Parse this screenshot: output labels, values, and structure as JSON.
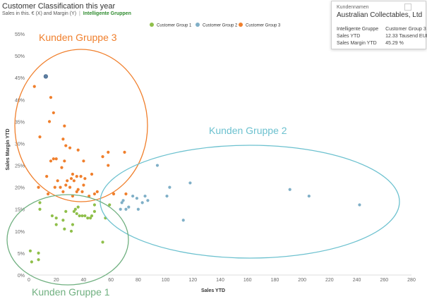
{
  "header": {
    "title": "Customer Classification this year",
    "subtitle_metrics": "Sales in this. € (X) and Margin (Y)",
    "subtitle_separator": "|",
    "subtitle_link": "Intelligente Gruppen"
  },
  "tooltip": {
    "header": "Kundennamen",
    "name": "Australian Collectables, Ltd",
    "rows": [
      {
        "label": "Intelligente Gruppe",
        "value": "Customer Group 3"
      },
      {
        "label": "Sales YTD",
        "value": "12.33 Tausend EUR"
      },
      {
        "label": "Sales Margin YTD",
        "value": "45.29 %"
      }
    ]
  },
  "annotations": [
    {
      "text": "Kunden Gruppe 3",
      "color": "#f07f2c"
    },
    {
      "text": "Kunden Gruppe 2",
      "color": "#6cc1cf"
    },
    {
      "text": "Kunden Gruppe 1",
      "color": "#70b080"
    }
  ],
  "chart_data": {
    "type": "scatter",
    "xlabel": "Sales YTD",
    "ylabel": "Sales Margin YTD",
    "xlim": [
      0,
      280
    ],
    "ylim": [
      0,
      55
    ],
    "x_ticks": [
      "0",
      "20",
      "40",
      "60",
      "80",
      "100",
      "120",
      "140",
      "160",
      "180",
      "200",
      "220",
      "240",
      "260",
      "280"
    ],
    "y_ticks": [
      "0%",
      "5%",
      "10%",
      "15%",
      "20%",
      "25%",
      "30%",
      "35%",
      "40%",
      "45%",
      "50%",
      "55%"
    ],
    "legend_position": "top",
    "highlighted_point": {
      "x": 12.33,
      "y": 45.29
    },
    "series": [
      {
        "name": "Customer Group 1",
        "color": "#8fbf4a",
        "points": [
          [
            1,
            5.5
          ],
          [
            7,
            5
          ],
          [
            2,
            3
          ],
          [
            7,
            3.5
          ],
          [
            8,
            16.5
          ],
          [
            8,
            15
          ],
          [
            17,
            13.5
          ],
          [
            20,
            13
          ],
          [
            20,
            11.5
          ],
          [
            25,
            12.5
          ],
          [
            26,
            10.5
          ],
          [
            27,
            14.5
          ],
          [
            31,
            10
          ],
          [
            32,
            11.5
          ],
          [
            33,
            14.5
          ],
          [
            34,
            15
          ],
          [
            35,
            14
          ],
          [
            36,
            15.5
          ],
          [
            37,
            13.5
          ],
          [
            39,
            13.5
          ],
          [
            41,
            13.5
          ],
          [
            43,
            13
          ],
          [
            45,
            13
          ],
          [
            46,
            13.5
          ],
          [
            48,
            14.5
          ],
          [
            54,
            7.5
          ],
          [
            56,
            13
          ],
          [
            59,
            16
          ],
          [
            48,
            16
          ]
        ]
      },
      {
        "name": "Customer Group 2",
        "color": "#7fafc7",
        "points": [
          [
            67,
            15
          ],
          [
            68,
            16.5
          ],
          [
            69,
            17
          ],
          [
            71,
            15
          ],
          [
            73,
            15.5
          ],
          [
            76,
            18
          ],
          [
            79,
            17.5
          ],
          [
            80,
            15
          ],
          [
            83,
            16.5
          ],
          [
            85,
            18
          ],
          [
            87,
            17
          ],
          [
            94,
            25
          ],
          [
            101,
            18
          ],
          [
            103,
            20
          ],
          [
            113,
            12.5
          ],
          [
            118,
            21
          ],
          [
            191,
            19.5
          ],
          [
            205,
            18
          ],
          [
            242,
            16
          ]
        ]
      },
      {
        "name": "Customer Group 3",
        "color": "#f07f2c",
        "points": [
          [
            12.33,
            45.29
          ],
          [
            4,
            43
          ],
          [
            16,
            40.5
          ],
          [
            18,
            37
          ],
          [
            15,
            35
          ],
          [
            26,
            34
          ],
          [
            8,
            31.5
          ],
          [
            25,
            31
          ],
          [
            27,
            29.5
          ],
          [
            30,
            29
          ],
          [
            36,
            28.5
          ],
          [
            58,
            28
          ],
          [
            70,
            28
          ],
          [
            18,
            26.5
          ],
          [
            20,
            26.5
          ],
          [
            16,
            26
          ],
          [
            26,
            26
          ],
          [
            40,
            26
          ],
          [
            54,
            27
          ],
          [
            24,
            24.5
          ],
          [
            58,
            25
          ],
          [
            32,
            23
          ],
          [
            46,
            23
          ],
          [
            13,
            22.5
          ],
          [
            31,
            22
          ],
          [
            35,
            22.5
          ],
          [
            38,
            22.5
          ],
          [
            41,
            22
          ],
          [
            21,
            21.5
          ],
          [
            28,
            21.5
          ],
          [
            33,
            21.5
          ],
          [
            27,
            20.5
          ],
          [
            40,
            20.5
          ],
          [
            19,
            20
          ],
          [
            23,
            20
          ],
          [
            30,
            20
          ],
          [
            36,
            19.5
          ],
          [
            50,
            19
          ],
          [
            25,
            19
          ],
          [
            35,
            19
          ],
          [
            39,
            19
          ],
          [
            44,
            18
          ],
          [
            48,
            18.5
          ],
          [
            62,
            18.5
          ],
          [
            71,
            18.5
          ],
          [
            7,
            20
          ],
          [
            14,
            18.5
          ],
          [
            32,
            18
          ]
        ]
      }
    ]
  }
}
